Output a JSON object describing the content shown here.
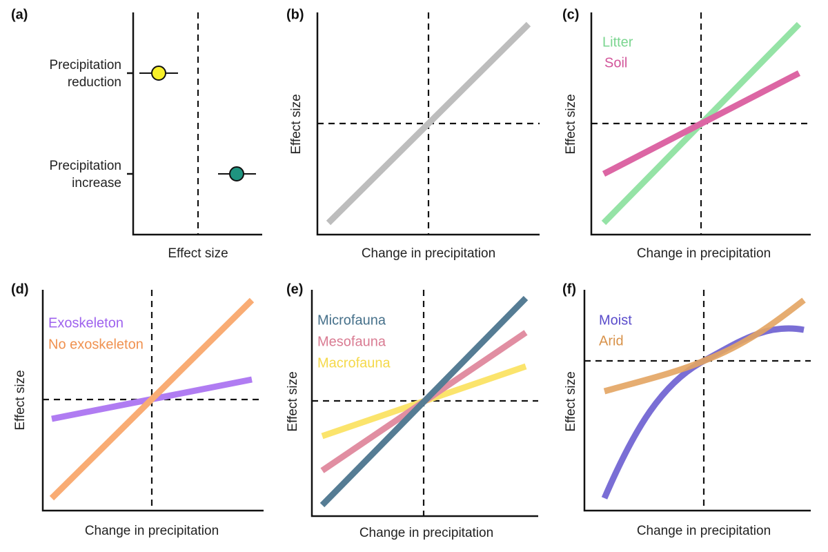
{
  "panels": [
    {
      "label": "(a)",
      "x_axis_label": "Effect size",
      "groups": [
        "Precipitation reduction",
        "Precipitation increase"
      ]
    },
    {
      "label": "(b)",
      "y_axis_label": "Effect size",
      "x_axis_label": "Change in precipitation"
    },
    {
      "label": "(c)",
      "y_axis_label": "Effect size",
      "x_axis_label": "Change in precipitation",
      "legend": [
        "Litter",
        "Soil"
      ]
    },
    {
      "label": "(d)",
      "y_axis_label": "Effect size",
      "x_axis_label": "Change in precipitation",
      "legend": [
        "Exoskeleton",
        "No exoskeleton"
      ]
    },
    {
      "label": "(e)",
      "y_axis_label": "Effect size",
      "x_axis_label": "Change in precipitation",
      "legend": [
        "Microfauna",
        "Mesofauna",
        "Macrofauna"
      ]
    },
    {
      "label": "(f)",
      "y_axis_label": "Effect size",
      "x_axis_label": "Change in precipitation",
      "legend": [
        "Moist",
        "Arid"
      ]
    }
  ]
}
